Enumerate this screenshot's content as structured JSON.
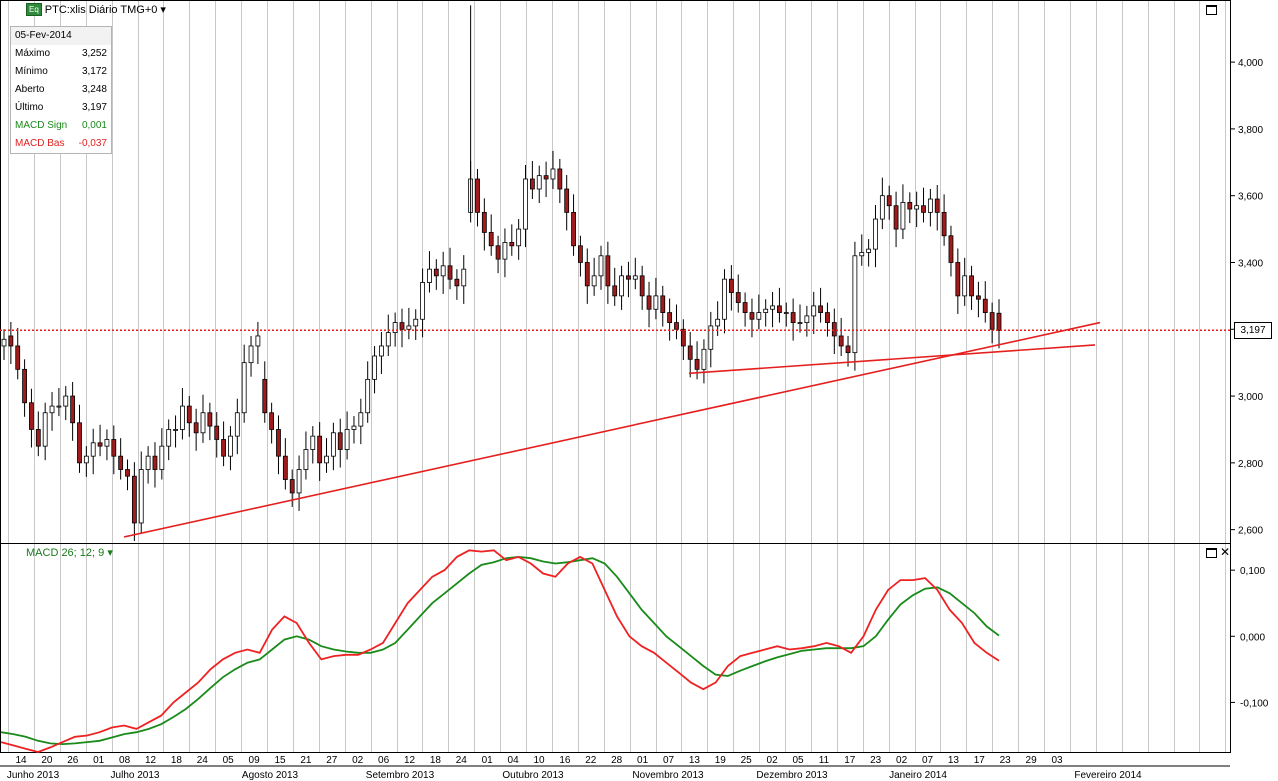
{
  "header": {
    "badge": "Eq",
    "title": "PTC:xlis Diário TMG+0",
    "dropdown_icon": "caret-down-icon"
  },
  "info_panel": {
    "date": "05-Fev-2014",
    "rows": [
      {
        "label": "Máximo",
        "value": "3,252",
        "color": "black"
      },
      {
        "label": "Mínimo",
        "value": "3,172",
        "color": "black"
      },
      {
        "label": "Aberto",
        "value": "3,248",
        "color": "black"
      },
      {
        "label": "Último",
        "value": "3,197",
        "color": "black"
      },
      {
        "label": "MACD Sign",
        "value": "0,001",
        "color": "green"
      },
      {
        "label": "MACD Bas",
        "value": "-0,037",
        "color": "red"
      }
    ]
  },
  "macd_panel": {
    "label": "MACD 26; 12; 9"
  },
  "current_price_label": "3,197",
  "colors": {
    "up_candle": "#ffffff",
    "down_candle": "#a01c1c",
    "wick": "#000000",
    "trendline": "#e51e1e",
    "macd_signal": "#1a8a1a",
    "macd_base": "#ee2222",
    "grid": "#c8c8c8"
  },
  "chart_data": [
    {
      "type": "candlestick",
      "title": "PTC:xlis Diário TMG+0",
      "ylim": [
        2.56,
        4.18
      ],
      "y_ticks": [
        "2,600",
        "2,800",
        "3,000",
        "3,200",
        "3,400",
        "3,600",
        "3,800",
        "4,000"
      ],
      "y_tick_values": [
        2.6,
        2.8,
        3.0,
        3.2,
        3.4,
        3.6,
        3.8,
        4.0
      ],
      "x_tick_labels": [
        "14",
        "20",
        "26",
        "01",
        "08",
        "12",
        "18",
        "24",
        "05",
        "09",
        "15",
        "21",
        "27",
        "02",
        "06",
        "12",
        "18",
        "24",
        "01",
        "04",
        "10",
        "16",
        "22",
        "28",
        "01",
        "07",
        "13",
        "19",
        "25",
        "02",
        "05",
        "11",
        "17",
        "23",
        "02",
        "07",
        "13",
        "17",
        "23",
        "29",
        "03"
      ],
      "month_labels": [
        "Junho 2013",
        "Julho 2013",
        "Agosto 2013",
        "Setembro 2013",
        "Outubro 2013",
        "Novembro 2013",
        "Dezembro 2013",
        "Janeiro 2014",
        "Fevereiro 2014"
      ],
      "current_price": 3.197,
      "close": [
        3.17,
        3.15,
        3.08,
        2.98,
        2.9,
        2.85,
        2.95,
        2.97,
        2.97,
        3.0,
        2.92,
        2.8,
        2.82,
        2.86,
        2.85,
        2.87,
        2.82,
        2.78,
        2.76,
        2.62,
        2.78,
        2.82,
        2.78,
        2.85,
        2.9,
        2.9,
        2.97,
        2.92,
        2.89,
        2.95,
        2.91,
        2.87,
        2.82,
        2.88,
        2.95,
        3.1,
        3.15,
        3.18,
        2.95,
        2.9,
        2.82,
        2.75,
        2.71,
        2.78,
        2.84,
        2.88,
        2.8,
        2.82,
        2.89,
        2.84,
        2.9,
        2.91,
        2.95,
        3.05,
        3.12,
        3.15,
        3.19,
        3.22,
        3.2,
        3.21,
        3.23,
        3.34,
        3.38,
        3.36,
        3.39,
        3.35,
        3.33,
        3.38,
        3.65,
        3.55,
        3.49,
        3.45,
        3.41,
        3.46,
        3.45,
        3.5,
        3.65,
        3.62,
        3.66,
        3.65,
        3.68,
        3.62,
        3.55,
        3.45,
        3.4,
        3.33,
        3.36,
        3.42,
        3.33,
        3.3,
        3.36,
        3.35,
        3.36,
        3.3,
        3.26,
        3.3,
        3.25,
        3.22,
        3.2,
        3.15,
        3.11,
        3.08,
        3.14,
        3.21,
        3.23,
        3.35,
        3.31,
        3.28,
        3.25,
        3.23,
        3.25,
        3.26,
        3.27,
        3.25,
        3.25,
        3.22,
        3.22,
        3.24,
        3.27,
        3.25,
        3.22,
        3.18,
        3.15,
        3.13,
        3.42,
        3.43,
        3.44,
        3.53,
        3.6,
        3.57,
        3.5,
        3.58,
        3.56,
        3.57,
        3.55,
        3.59,
        3.55,
        3.48,
        3.4,
        3.3,
        3.36,
        3.3,
        3.29,
        3.25,
        3.2,
        3.197
      ],
      "open": [
        3.15,
        3.18,
        3.15,
        3.08,
        2.98,
        2.9,
        2.85,
        2.95,
        2.97,
        2.97,
        3.0,
        2.92,
        2.8,
        2.82,
        2.86,
        2.85,
        2.87,
        2.82,
        2.78,
        2.76,
        2.62,
        2.78,
        2.82,
        2.78,
        2.85,
        2.9,
        2.9,
        2.97,
        2.92,
        2.89,
        2.95,
        2.91,
        2.87,
        2.82,
        2.88,
        2.95,
        3.1,
        3.15,
        3.05,
        2.95,
        2.9,
        2.82,
        2.75,
        2.71,
        2.78,
        2.84,
        2.88,
        2.8,
        2.82,
        2.89,
        2.84,
        2.9,
        2.91,
        2.95,
        3.05,
        3.12,
        3.15,
        3.19,
        3.22,
        3.2,
        3.21,
        3.23,
        3.34,
        3.38,
        3.36,
        3.39,
        3.35,
        3.33,
        3.55,
        3.65,
        3.55,
        3.49,
        3.45,
        3.41,
        3.46,
        3.45,
        3.5,
        3.65,
        3.62,
        3.66,
        3.65,
        3.68,
        3.62,
        3.55,
        3.45,
        3.4,
        3.33,
        3.36,
        3.42,
        3.33,
        3.3,
        3.36,
        3.35,
        3.36,
        3.3,
        3.26,
        3.3,
        3.25,
        3.22,
        3.2,
        3.15,
        3.11,
        3.08,
        3.14,
        3.21,
        3.23,
        3.35,
        3.31,
        3.28,
        3.25,
        3.23,
        3.25,
        3.26,
        3.27,
        3.25,
        3.25,
        3.22,
        3.22,
        3.24,
        3.27,
        3.25,
        3.22,
        3.18,
        3.15,
        3.13,
        3.42,
        3.43,
        3.44,
        3.53,
        3.6,
        3.57,
        3.5,
        3.58,
        3.56,
        3.57,
        3.55,
        3.59,
        3.55,
        3.48,
        3.4,
        3.3,
        3.36,
        3.3,
        3.29,
        3.25,
        3.248
      ]
    },
    {
      "type": "line",
      "title": "MACD 26; 12; 9",
      "ylim": [
        -0.175,
        0.135
      ],
      "y_ticks": [
        "0,100",
        "0,000",
        "-0,100"
      ],
      "y_tick_values": [
        0.1,
        0.0,
        -0.1
      ],
      "series": [
        {
          "name": "MACD Bas",
          "color": "red",
          "values": [
            -0.16,
            -0.165,
            -0.17,
            -0.175,
            -0.168,
            -0.16,
            -0.152,
            -0.15,
            -0.145,
            -0.138,
            -0.135,
            -0.14,
            -0.13,
            -0.12,
            -0.1,
            -0.085,
            -0.07,
            -0.05,
            -0.035,
            -0.025,
            -0.02,
            -0.025,
            0.01,
            0.03,
            0.02,
            -0.01,
            -0.035,
            -0.03,
            -0.028,
            -0.028,
            -0.02,
            -0.01,
            0.02,
            0.05,
            0.07,
            0.09,
            0.1,
            0.12,
            0.13,
            0.128,
            0.13,
            0.115,
            0.12,
            0.11,
            0.095,
            0.09,
            0.11,
            0.12,
            0.11,
            0.07,
            0.03,
            0.0,
            -0.015,
            -0.025,
            -0.04,
            -0.055,
            -0.07,
            -0.08,
            -0.07,
            -0.045,
            -0.03,
            -0.025,
            -0.02,
            -0.015,
            -0.02,
            -0.018,
            -0.015,
            -0.01,
            -0.015,
            -0.025,
            0.0,
            0.04,
            0.07,
            0.085,
            0.085,
            0.088,
            0.07,
            0.04,
            0.02,
            -0.01,
            -0.025,
            -0.037
          ]
        },
        {
          "name": "MACD Sign",
          "color": "green",
          "values": [
            -0.145,
            -0.148,
            -0.152,
            -0.158,
            -0.162,
            -0.163,
            -0.162,
            -0.16,
            -0.158,
            -0.153,
            -0.148,
            -0.145,
            -0.14,
            -0.133,
            -0.122,
            -0.11,
            -0.095,
            -0.078,
            -0.062,
            -0.05,
            -0.04,
            -0.035,
            -0.02,
            -0.005,
            0.0,
            -0.005,
            -0.015,
            -0.02,
            -0.023,
            -0.025,
            -0.025,
            -0.02,
            -0.01,
            0.01,
            0.03,
            0.05,
            0.065,
            0.08,
            0.095,
            0.108,
            0.112,
            0.118,
            0.12,
            0.118,
            0.113,
            0.11,
            0.112,
            0.115,
            0.118,
            0.11,
            0.09,
            0.065,
            0.04,
            0.02,
            0.0,
            -0.015,
            -0.03,
            -0.045,
            -0.058,
            -0.06,
            -0.052,
            -0.045,
            -0.038,
            -0.032,
            -0.027,
            -0.022,
            -0.02,
            -0.018,
            -0.018,
            -0.018,
            -0.015,
            0.0,
            0.025,
            0.048,
            0.062,
            0.072,
            0.074,
            0.065,
            0.05,
            0.035,
            0.015,
            0.001
          ]
        }
      ]
    }
  ]
}
